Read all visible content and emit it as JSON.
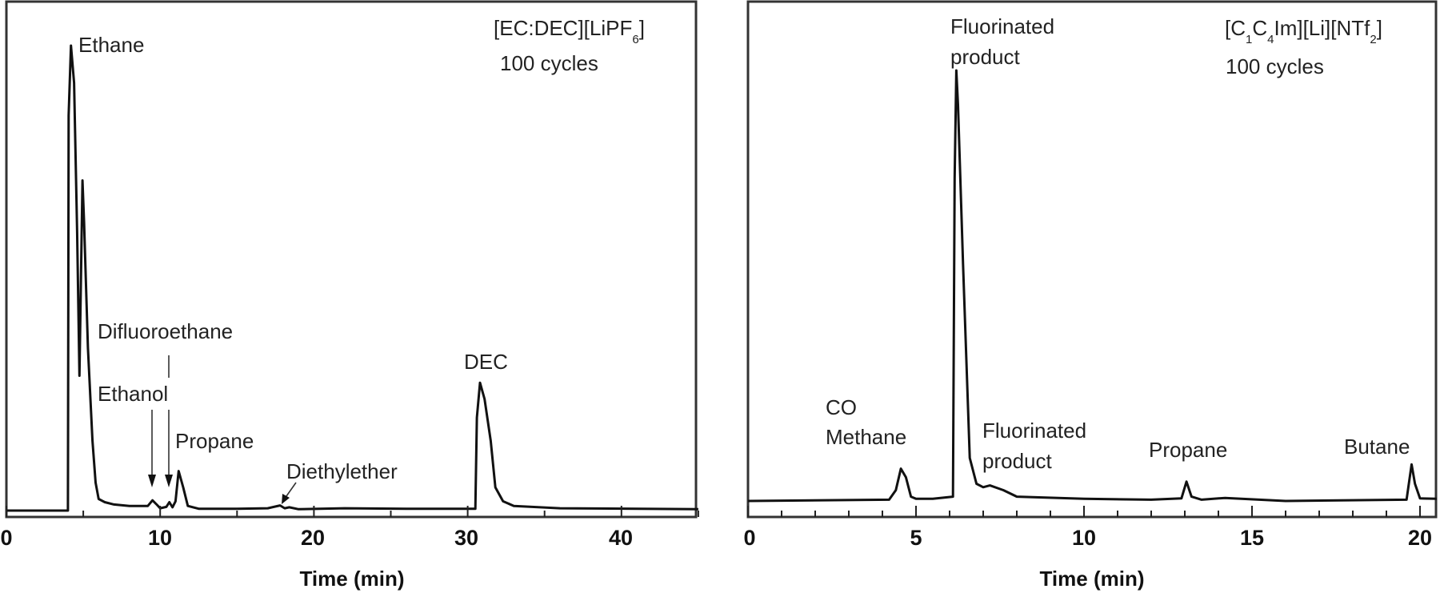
{
  "chart_data": [
    {
      "type": "line",
      "title": "",
      "xlabel": "Time (min)",
      "ylabel": "",
      "xlim": [
        0,
        45
      ],
      "xticks": [
        0,
        10,
        20,
        30,
        40
      ],
      "xtick_labels": [
        "0",
        "10",
        "20",
        "30",
        "40"
      ],
      "grid": false,
      "legend": null,
      "annotation_title": "[EC:DEC][LiPF6]",
      "annotation_title_parts": {
        "main": "[EC:DEC][LiPF",
        "sub": "6",
        "end": "]"
      },
      "annotation_subtitle": "100 cycles",
      "series": [
        {
          "name": "[EC:DEC][LiPF6] 100 cycles",
          "x": [
            0,
            4.0,
            4.05,
            4.2,
            4.4,
            4.6,
            4.75,
            4.85,
            4.95,
            5.05,
            5.3,
            5.6,
            5.8,
            6.0,
            6.4,
            7.0,
            8.0,
            9.2,
            9.5,
            9.8,
            10.0,
            10.4,
            10.6,
            10.8,
            11.0,
            11.2,
            11.5,
            11.8,
            12.5,
            15,
            17,
            17.8,
            18.1,
            18.4,
            19,
            22,
            26,
            30.5,
            30.6,
            30.8,
            31.1,
            31.5,
            31.8,
            32.3,
            33,
            36,
            45
          ],
          "y": [
            0,
            0,
            85,
            100,
            92,
            60,
            29,
            50,
            71,
            62,
            35,
            15,
            6,
            2.5,
            1.8,
            1.3,
            1.0,
            1.0,
            2.2,
            1.2,
            0.5,
            0.8,
            1.8,
            0.7,
            2.0,
            8.5,
            5.0,
            1.0,
            0.4,
            0.4,
            0.5,
            1.1,
            0.5,
            0.7,
            0.3,
            0.5,
            0.4,
            0.4,
            20,
            27.5,
            24,
            15,
            5,
            2.0,
            1.0,
            0.5,
            0.3
          ]
        }
      ],
      "peak_labels": [
        {
          "label": "Ethane",
          "x": 4.2
        },
        {
          "label": "Difluoroethane",
          "x": 10.6
        },
        {
          "label": "Ethanol",
          "x": 9.5
        },
        {
          "label": "Propane",
          "x": 11.2
        },
        {
          "label": "Diethylether",
          "x": 17.8
        },
        {
          "label": "DEC",
          "x": 30.8
        }
      ]
    },
    {
      "type": "line",
      "title": "",
      "xlabel": "Time (min)",
      "ylabel": "",
      "xlim": [
        0,
        20.5
      ],
      "xticks": [
        0,
        5,
        10,
        15,
        20
      ],
      "xtick_labels": [
        "0",
        "5",
        "10",
        "15",
        "20"
      ],
      "minor_tick_step": 1,
      "grid": false,
      "legend": null,
      "annotation_title": "[C1C4Im][Li][NTf2]",
      "annotation_title_parts": {
        "a": "[C",
        "s1": "1",
        "b": "C",
        "s2": "4",
        "c": "Im][Li][NTf",
        "s3": "2",
        "d": "]"
      },
      "annotation_subtitle": "100 cycles",
      "series": [
        {
          "name": "[C1C4Im][Li][NTf2] 100 cycles",
          "x": [
            0,
            4.2,
            4.4,
            4.55,
            4.7,
            4.85,
            5.0,
            5.5,
            6.1,
            6.15,
            6.2,
            6.25,
            6.4,
            6.6,
            6.8,
            7.0,
            7.2,
            7.6,
            8.0,
            10,
            12,
            12.9,
            13.05,
            13.2,
            13.5,
            14.2,
            16,
            19.6,
            19.75,
            19.85,
            20.0,
            20.5
          ],
          "y": [
            0,
            0.3,
            2.5,
            7.5,
            5.5,
            1.0,
            0.5,
            0.5,
            1.0,
            75,
            100,
            92,
            55,
            10,
            4,
            3.2,
            3.6,
            2.5,
            1.0,
            0.5,
            0.3,
            0.6,
            4.5,
            1.0,
            0.3,
            0.7,
            0.0,
            0.3,
            8.5,
            4,
            0.6,
            0.5
          ]
        }
      ],
      "peak_labels": [
        {
          "label": "Fluorinated product",
          "x": 6.2
        },
        {
          "label": "CO Methane",
          "x": 4.6
        },
        {
          "label": "Fluorinated product",
          "x": 7.2
        },
        {
          "label": "Propane",
          "x": 13.1
        },
        {
          "label": "Butane",
          "x": 19.8
        }
      ]
    }
  ],
  "left": {
    "title_main": "[EC:DEC][LiPF",
    "title_sub": "6",
    "title_end": "]",
    "cycles": "100 cycles",
    "xlabel": "Time (min)",
    "ticks": [
      "0",
      "10",
      "20",
      "30",
      "40"
    ],
    "labels": {
      "ethane": "Ethane",
      "difluoroethane": "Difluoroethane",
      "ethanol": "Ethanol",
      "propane": "Propane",
      "diethylether": "Diethylether",
      "dec": "DEC"
    }
  },
  "right": {
    "title_a": "[C",
    "title_s1": "1",
    "title_b": "C",
    "title_s2": "4",
    "title_c": "Im][Li][NTf",
    "title_s3": "2",
    "title_d": "]",
    "cycles": "100 cycles",
    "xlabel": "Time (min)",
    "ticks": [
      "0",
      "5",
      "10",
      "15",
      "20"
    ],
    "labels": {
      "fluorinated_top_1": "Fluorinated",
      "fluorinated_top_2": "product",
      "co": "CO",
      "methane": "Methane",
      "fluorinated_low_1": "Fluorinated",
      "fluorinated_low_2": "product",
      "propane": "Propane",
      "butane": "Butane"
    }
  }
}
